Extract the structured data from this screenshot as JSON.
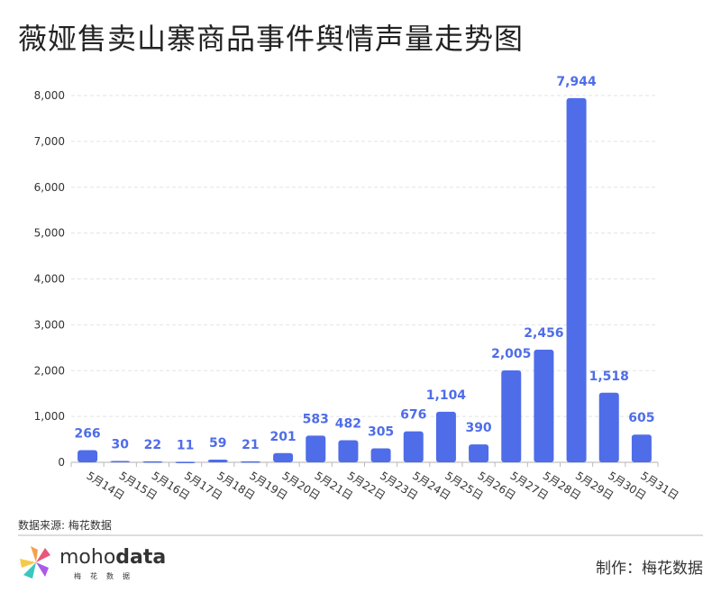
{
  "title": "薇娅售卖山寨商品事件舆情声量走势图",
  "source": "数据来源: 梅花数据",
  "credit": "制作：梅花数据",
  "brand": {
    "light": "moho",
    "bold": "data",
    "sub": "梅花数据"
  },
  "colors": {
    "bar": "#4f6de8",
    "label": "#4f6de8"
  },
  "chart_data": {
    "type": "bar",
    "title": "薇娅售卖山寨商品事件舆情声量走势图",
    "categories": [
      "5月14日",
      "5月15日",
      "5月16日",
      "5月17日",
      "5月18日",
      "5月19日",
      "5月20日",
      "5月21日",
      "5月22日",
      "5月23日",
      "5月24日",
      "5月25日",
      "5月26日",
      "5月27日",
      "5月28日",
      "5月29日",
      "5月30日",
      "5月31日"
    ],
    "values": [
      266,
      30,
      22,
      11,
      59,
      21,
      201,
      583,
      482,
      305,
      676,
      1104,
      390,
      2005,
      2456,
      7944,
      1518,
      605
    ],
    "data_labels": [
      "266",
      "30",
      "22",
      "11",
      "59",
      "21",
      "201",
      "583",
      "482",
      "305",
      "676",
      "1,104",
      "390",
      "2,005",
      "2,456",
      "7,944",
      "1,518",
      "605"
    ],
    "yticks": [
      "0",
      "1,000",
      "2,000",
      "3,000",
      "4,000",
      "5,000",
      "6,000",
      "7,000",
      "8,000"
    ],
    "ylim": [
      0,
      8000
    ],
    "grid": true,
    "xlabel": "",
    "ylabel": ""
  }
}
